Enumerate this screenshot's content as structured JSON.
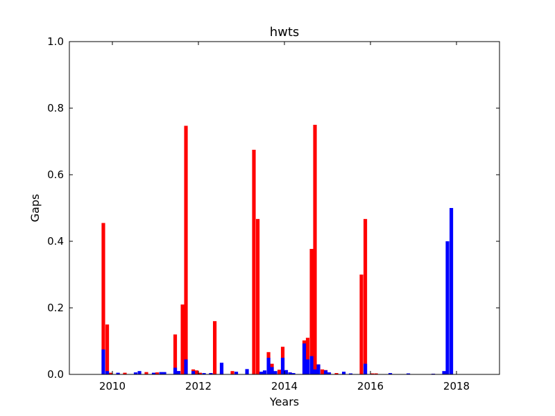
{
  "chart_data": {
    "type": "bar",
    "title": "hwts",
    "xlabel": "Years",
    "ylabel": "Gaps",
    "xlim": [
      2009.0,
      2019.0
    ],
    "ylim": [
      0.0,
      1.0
    ],
    "xticks": [
      2010,
      2012,
      2014,
      2016,
      2018
    ],
    "xtick_labels": [
      "2010",
      "2012",
      "2014",
      "2016",
      "2018"
    ],
    "yticks": [
      0.0,
      0.2,
      0.4,
      0.6,
      0.8,
      1.0
    ],
    "ytick_labels": [
      "0.0",
      "0.2",
      "0.4",
      "0.6",
      "0.8",
      "1.0"
    ],
    "grid": false,
    "bar_width_years": 0.0833,
    "stacked": false,
    "series": [
      {
        "color": "#ff0000",
        "x": [
          2009.79,
          2009.88,
          2009.96,
          2010.13,
          2010.29,
          2010.79,
          2010.96,
          2011.04,
          2011.46,
          2011.54,
          2011.63,
          2011.71,
          2011.88,
          2011.96,
          2012.04,
          2012.29,
          2012.38,
          2012.54,
          2012.79,
          2013.29,
          2013.38,
          2013.63,
          2013.71,
          2013.88,
          2013.96,
          2014.04,
          2014.13,
          2014.46,
          2014.54,
          2014.63,
          2014.71,
          2014.79,
          2014.88,
          2014.96,
          2015.04,
          2015.21,
          2015.79,
          2015.88,
          2016.04,
          2016.13,
          2016.46,
          2017.46
        ],
        "values": [
          0.455,
          0.15,
          0.005,
          0.004,
          0.005,
          0.007,
          0.004,
          0.006,
          0.12,
          0.01,
          0.21,
          0.747,
          0.015,
          0.012,
          0.005,
          0.004,
          0.16,
          0.007,
          0.01,
          0.675,
          0.467,
          0.067,
          0.032,
          0.014,
          0.083,
          0.012,
          0.006,
          0.102,
          0.11,
          0.377,
          0.75,
          0.03,
          0.015,
          0.013,
          0.006,
          0.004,
          0.3,
          0.467,
          0.003,
          0.003,
          0.003,
          0.002
        ]
      },
      {
        "color": "#0000ff",
        "x": [
          2009.79,
          2009.88,
          2010.13,
          2010.54,
          2010.63,
          2010.96,
          2011.13,
          2011.21,
          2011.46,
          2011.54,
          2011.71,
          2011.88,
          2012.13,
          2012.29,
          2012.54,
          2012.88,
          2013.13,
          2013.46,
          2013.54,
          2013.63,
          2013.71,
          2013.79,
          2013.96,
          2014.04,
          2014.13,
          2014.21,
          2014.46,
          2014.54,
          2014.63,
          2014.71,
          2014.79,
          2014.96,
          2015.04,
          2015.38,
          2015.54,
          2015.88,
          2016.46,
          2016.88,
          2017.46,
          2017.71,
          2017.79,
          2017.88
        ],
        "values": [
          0.075,
          0.01,
          0.005,
          0.006,
          0.01,
          0.005,
          0.007,
          0.007,
          0.02,
          0.01,
          0.045,
          0.01,
          0.004,
          0.004,
          0.035,
          0.008,
          0.016,
          0.008,
          0.012,
          0.05,
          0.022,
          0.01,
          0.05,
          0.013,
          0.006,
          0.004,
          0.093,
          0.045,
          0.055,
          0.015,
          0.03,
          0.012,
          0.006,
          0.008,
          0.003,
          0.032,
          0.004,
          0.003,
          0.002,
          0.01,
          0.4,
          0.5
        ]
      }
    ]
  }
}
